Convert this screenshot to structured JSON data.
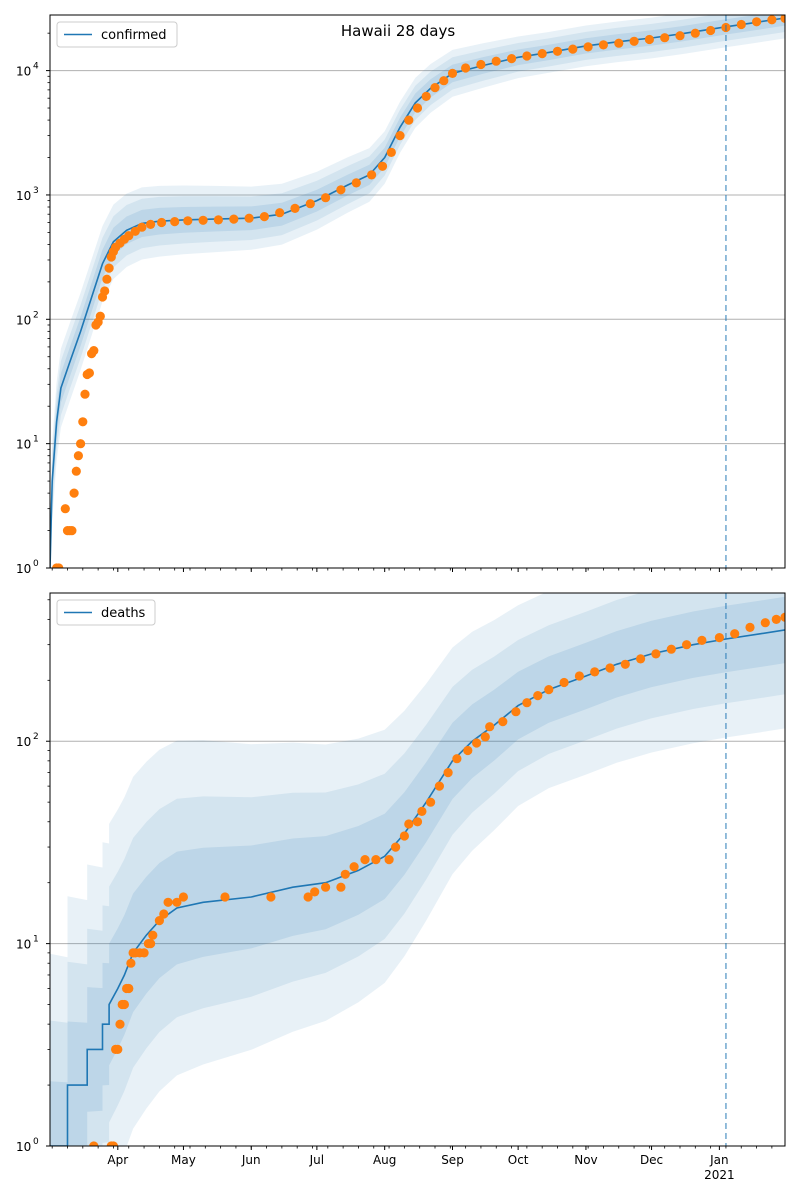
{
  "title": "Hawaii 28 days",
  "colors": {
    "model": "#1f77b4",
    "observed": "#ff7f0e",
    "band": "#1f77b4",
    "grid": "#b0b0b0",
    "today_line": "#1f77b4"
  },
  "x_axis": {
    "start": "2020-03-01",
    "end": "2021-01-31",
    "month_ticks": [
      {
        "date": "2020-04-01",
        "label": "Apr"
      },
      {
        "date": "2020-05-01",
        "label": "May"
      },
      {
        "date": "2020-06-01",
        "label": "Jun"
      },
      {
        "date": "2020-07-01",
        "label": "Jul"
      },
      {
        "date": "2020-08-01",
        "label": "Aug"
      },
      {
        "date": "2020-09-01",
        "label": "Sep"
      },
      {
        "date": "2020-10-01",
        "label": "Oct"
      },
      {
        "date": "2020-11-01",
        "label": "Nov"
      },
      {
        "date": "2020-12-01",
        "label": "Dec"
      },
      {
        "date": "2021-01-01",
        "label": "Jan"
      }
    ],
    "year_label": {
      "date": "2021-01-01",
      "label": "2021"
    },
    "today": "2021-01-04"
  },
  "chart_data": [
    {
      "type": "line",
      "legend": "confirmed",
      "legend_loc": "upper-left",
      "yscale": "log",
      "ylim": [
        1,
        28000
      ],
      "yticks": [
        {
          "value": 1,
          "base": "10",
          "exp": "0"
        },
        {
          "value": 10,
          "base": "10",
          "exp": "1"
        },
        {
          "value": 100,
          "base": "10",
          "exp": "2"
        },
        {
          "value": 1000,
          "base": "10",
          "exp": "3"
        },
        {
          "value": 10000,
          "base": "10",
          "exp": "4"
        }
      ],
      "grid": true,
      "model": [
        [
          "2020-03-01",
          1
        ],
        [
          "2020-03-02",
          5
        ],
        [
          "2020-03-04",
          15
        ],
        [
          "2020-03-06",
          28
        ],
        [
          "2020-03-10",
          45
        ],
        [
          "2020-03-15",
          80
        ],
        [
          "2020-03-20",
          150
        ],
        [
          "2020-03-25",
          280
        ],
        [
          "2020-03-30",
          420
        ],
        [
          "2020-04-05",
          520
        ],
        [
          "2020-04-12",
          590
        ],
        [
          "2020-04-20",
          615
        ],
        [
          "2020-05-01",
          630
        ],
        [
          "2020-05-15",
          640
        ],
        [
          "2020-06-01",
          650
        ],
        [
          "2020-06-15",
          700
        ],
        [
          "2020-07-01",
          900
        ],
        [
          "2020-07-15",
          1200
        ],
        [
          "2020-07-25",
          1450
        ],
        [
          "2020-08-01",
          2000
        ],
        [
          "2020-08-08",
          3500
        ],
        [
          "2020-08-15",
          5500
        ],
        [
          "2020-08-22",
          7200
        ],
        [
          "2020-09-01",
          9500
        ],
        [
          "2020-09-15",
          11000
        ],
        [
          "2020-10-01",
          12800
        ],
        [
          "2020-10-15",
          14000
        ],
        [
          "2020-11-01",
          15800
        ],
        [
          "2020-11-15",
          17000
        ],
        [
          "2020-12-01",
          18300
        ],
        [
          "2020-12-15",
          19800
        ],
        [
          "2021-01-04",
          22500
        ],
        [
          "2021-01-15",
          24000
        ],
        [
          "2021-01-31",
          26500
        ]
      ],
      "observed": [
        [
          "2020-03-04",
          1
        ],
        [
          "2020-03-05",
          1
        ],
        [
          "2020-03-08",
          3
        ],
        [
          "2020-03-09",
          2
        ],
        [
          "2020-03-10",
          2
        ],
        [
          "2020-03-11",
          2
        ],
        [
          "2020-03-12",
          4
        ],
        [
          "2020-03-13",
          6
        ],
        [
          "2020-03-14",
          8
        ],
        [
          "2020-03-15",
          10
        ],
        [
          "2020-03-16",
          15
        ],
        [
          "2020-03-17",
          25
        ],
        [
          "2020-03-18",
          36
        ],
        [
          "2020-03-19",
          37
        ],
        [
          "2020-03-20",
          53
        ],
        [
          "2020-03-21",
          56
        ],
        [
          "2020-03-22",
          90
        ],
        [
          "2020-03-23",
          95
        ],
        [
          "2020-03-24",
          106
        ],
        [
          "2020-03-25",
          151
        ],
        [
          "2020-03-26",
          169
        ],
        [
          "2020-03-27",
          210
        ],
        [
          "2020-03-28",
          258
        ],
        [
          "2020-03-29",
          317
        ],
        [
          "2020-03-30",
          350
        ],
        [
          "2020-03-31",
          380
        ],
        [
          "2020-04-02",
          410
        ],
        [
          "2020-04-04",
          440
        ],
        [
          "2020-04-06",
          470
        ],
        [
          "2020-04-09",
          510
        ],
        [
          "2020-04-12",
          550
        ],
        [
          "2020-04-16",
          580
        ],
        [
          "2020-04-21",
          600
        ],
        [
          "2020-04-27",
          610
        ],
        [
          "2020-05-03",
          620
        ],
        [
          "2020-05-10",
          625
        ],
        [
          "2020-05-17",
          630
        ],
        [
          "2020-05-24",
          640
        ],
        [
          "2020-05-31",
          650
        ],
        [
          "2020-06-07",
          670
        ],
        [
          "2020-06-14",
          720
        ],
        [
          "2020-06-21",
          780
        ],
        [
          "2020-06-28",
          850
        ],
        [
          "2020-07-05",
          950
        ],
        [
          "2020-07-12",
          1100
        ],
        [
          "2020-07-19",
          1250
        ],
        [
          "2020-07-26",
          1450
        ],
        [
          "2020-07-31",
          1700
        ],
        [
          "2020-08-04",
          2200
        ],
        [
          "2020-08-08",
          3000
        ],
        [
          "2020-08-12",
          4000
        ],
        [
          "2020-08-16",
          5000
        ],
        [
          "2020-08-20",
          6200
        ],
        [
          "2020-08-24",
          7300
        ],
        [
          "2020-08-28",
          8300
        ],
        [
          "2020-09-01",
          9500
        ],
        [
          "2020-09-07",
          10500
        ],
        [
          "2020-09-14",
          11200
        ],
        [
          "2020-09-21",
          11900
        ],
        [
          "2020-09-28",
          12500
        ],
        [
          "2020-10-05",
          13100
        ],
        [
          "2020-10-12",
          13700
        ],
        [
          "2020-10-19",
          14300
        ],
        [
          "2020-10-26",
          14900
        ],
        [
          "2020-11-02",
          15500
        ],
        [
          "2020-11-09",
          16100
        ],
        [
          "2020-11-16",
          16600
        ],
        [
          "2020-11-23",
          17200
        ],
        [
          "2020-11-30",
          17800
        ],
        [
          "2020-12-07",
          18400
        ],
        [
          "2020-12-14",
          19100
        ],
        [
          "2020-12-21",
          20000
        ],
        [
          "2020-12-28",
          21000
        ],
        [
          "2021-01-04",
          22200
        ],
        [
          "2021-01-11",
          23500
        ],
        [
          "2021-01-18",
          24700
        ],
        [
          "2021-01-25",
          25600
        ],
        [
          "2021-01-31",
          26300
        ]
      ]
    },
    {
      "type": "line",
      "legend": "deaths",
      "legend_loc": "upper-left",
      "yscale": "log",
      "ylim": [
        1,
        540
      ],
      "yticks": [
        {
          "value": 1,
          "base": "10",
          "exp": "0"
        },
        {
          "value": 10,
          "base": "10",
          "exp": "1"
        },
        {
          "value": 100,
          "base": "10",
          "exp": "2"
        }
      ],
      "grid": true,
      "model": [
        [
          "2020-03-01",
          1
        ],
        [
          "2020-03-09",
          1
        ],
        [
          "2020-03-09",
          2
        ],
        [
          "2020-03-18",
          2
        ],
        [
          "2020-03-18",
          3
        ],
        [
          "2020-03-25",
          3
        ],
        [
          "2020-03-25",
          4
        ],
        [
          "2020-03-28",
          4
        ],
        [
          "2020-03-28",
          5
        ],
        [
          "2020-04-01",
          6
        ],
        [
          "2020-04-04",
          7
        ],
        [
          "2020-04-08",
          9
        ],
        [
          "2020-04-14",
          11
        ],
        [
          "2020-04-20",
          13
        ],
        [
          "2020-04-28",
          15
        ],
        [
          "2020-05-10",
          16
        ],
        [
          "2020-06-01",
          17
        ],
        [
          "2020-06-20",
          19
        ],
        [
          "2020-07-05",
          20
        ],
        [
          "2020-07-20",
          23
        ],
        [
          "2020-08-01",
          27
        ],
        [
          "2020-08-10",
          35
        ],
        [
          "2020-08-20",
          50
        ],
        [
          "2020-09-01",
          80
        ],
        [
          "2020-09-10",
          100
        ],
        [
          "2020-09-20",
          120
        ],
        [
          "2020-10-01",
          150
        ],
        [
          "2020-10-15",
          180
        ],
        [
          "2020-11-01",
          210
        ],
        [
          "2020-11-15",
          240
        ],
        [
          "2020-12-01",
          270
        ],
        [
          "2020-12-20",
          300
        ],
        [
          "2021-01-04",
          320
        ],
        [
          "2021-01-20",
          340
        ],
        [
          "2021-01-31",
          355
        ]
      ],
      "observed": [
        [
          "2020-03-21",
          1
        ],
        [
          "2020-03-29",
          1
        ],
        [
          "2020-03-30",
          1
        ],
        [
          "2020-03-31",
          3
        ],
        [
          "2020-04-01",
          3
        ],
        [
          "2020-04-02",
          4
        ],
        [
          "2020-04-03",
          5
        ],
        [
          "2020-04-04",
          5
        ],
        [
          "2020-04-05",
          6
        ],
        [
          "2020-04-06",
          6
        ],
        [
          "2020-04-07",
          8
        ],
        [
          "2020-04-08",
          9
        ],
        [
          "2020-04-09",
          9
        ],
        [
          "2020-04-11",
          9
        ],
        [
          "2020-04-13",
          9
        ],
        [
          "2020-04-15",
          10
        ],
        [
          "2020-04-16",
          10
        ],
        [
          "2020-04-17",
          11
        ],
        [
          "2020-04-20",
          13
        ],
        [
          "2020-04-22",
          14
        ],
        [
          "2020-04-24",
          16
        ],
        [
          "2020-04-28",
          16
        ],
        [
          "2020-05-01",
          17
        ],
        [
          "2020-05-20",
          17
        ],
        [
          "2020-06-10",
          17
        ],
        [
          "2020-06-27",
          17
        ],
        [
          "2020-06-30",
          18
        ],
        [
          "2020-07-05",
          19
        ],
        [
          "2020-07-12",
          19
        ],
        [
          "2020-07-14",
          22
        ],
        [
          "2020-07-18",
          24
        ],
        [
          "2020-07-23",
          26
        ],
        [
          "2020-07-28",
          26
        ],
        [
          "2020-08-03",
          26
        ],
        [
          "2020-08-06",
          30
        ],
        [
          "2020-08-10",
          34
        ],
        [
          "2020-08-12",
          39
        ],
        [
          "2020-08-16",
          40
        ],
        [
          "2020-08-18",
          45
        ],
        [
          "2020-08-22",
          50
        ],
        [
          "2020-08-26",
          60
        ],
        [
          "2020-08-30",
          70
        ],
        [
          "2020-09-03",
          82
        ],
        [
          "2020-09-08",
          90
        ],
        [
          "2020-09-12",
          98
        ],
        [
          "2020-09-16",
          105
        ],
        [
          "2020-09-18",
          118
        ],
        [
          "2020-09-24",
          125
        ],
        [
          "2020-09-30",
          140
        ],
        [
          "2020-10-05",
          155
        ],
        [
          "2020-10-10",
          168
        ],
        [
          "2020-10-15",
          180
        ],
        [
          "2020-10-22",
          195
        ],
        [
          "2020-10-29",
          210
        ],
        [
          "2020-11-05",
          220
        ],
        [
          "2020-11-12",
          230
        ],
        [
          "2020-11-19",
          240
        ],
        [
          "2020-11-26",
          255
        ],
        [
          "2020-12-03",
          270
        ],
        [
          "2020-12-10",
          285
        ],
        [
          "2020-12-17",
          300
        ],
        [
          "2020-12-24",
          315
        ],
        [
          "2021-01-01",
          325
        ],
        [
          "2021-01-08",
          340
        ],
        [
          "2021-01-15",
          365
        ],
        [
          "2021-01-22",
          385
        ],
        [
          "2021-01-27",
          400
        ],
        [
          "2021-01-31",
          410
        ]
      ]
    }
  ]
}
